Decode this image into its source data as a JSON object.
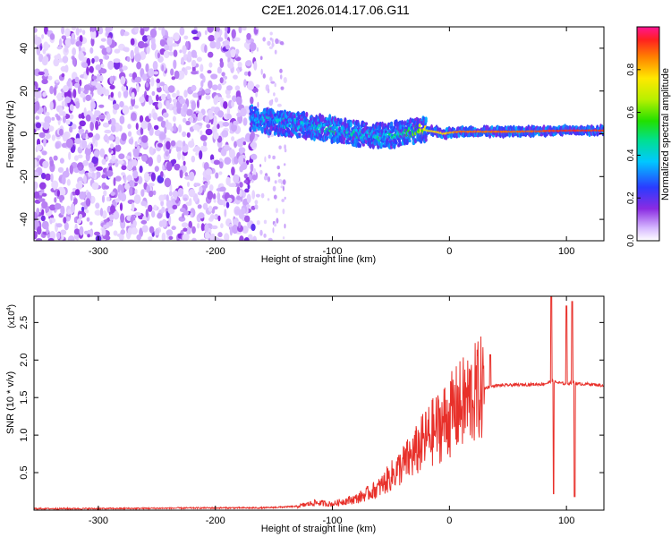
{
  "title": "C2E1.2026.014.17.06.G11",
  "colors": {
    "line": "#e8302a",
    "axis": "#000000"
  },
  "chart_data": [
    {
      "type": "heatmap",
      "name": "spectrogram",
      "xlabel": "Height of straight line (km)",
      "ylabel": "Frequency (Hz)",
      "xlim": [
        -355,
        132
      ],
      "ylim": [
        -50,
        50
      ],
      "x_ticks": [
        {
          "value": -300,
          "label": "-300"
        },
        {
          "value": -200,
          "label": "-200"
        },
        {
          "value": -100,
          "label": "-100"
        },
        {
          "value": 0,
          "label": "0"
        },
        {
          "value": 100,
          "label": "100"
        }
      ],
      "y_ticks": [
        {
          "value": -40,
          "label": "-40"
        },
        {
          "value": -20,
          "label": "-20"
        },
        {
          "value": 0,
          "label": "0"
        },
        {
          "value": 20,
          "label": "20"
        },
        {
          "value": 40,
          "label": "40"
        }
      ],
      "colorbar": {
        "label": "Normalized spectral amplitude",
        "range": [
          0,
          1
        ],
        "ticks": [
          {
            "value": 0.0,
            "label": "0.0"
          },
          {
            "value": 0.2,
            "label": "0.2"
          },
          {
            "value": 0.4,
            "label": "0.4"
          },
          {
            "value": 0.6,
            "label": "0.6"
          },
          {
            "value": 0.8,
            "label": "0.8"
          }
        ]
      },
      "signal_track": {
        "x": [
          -170,
          -140,
          -110,
          -80,
          -60,
          -40,
          -25,
          -12,
          -5,
          0,
          10,
          25,
          60,
          100,
          132
        ],
        "freq": [
          7,
          5,
          3,
          0,
          -1,
          0,
          2,
          1,
          0,
          0.5,
          1,
          1,
          1,
          1.5,
          1.5
        ],
        "amplitude": [
          0.4,
          0.45,
          0.5,
          0.5,
          0.5,
          0.55,
          0.75,
          0.8,
          0.8,
          0.85,
          0.9,
          0.9,
          0.9,
          0.95,
          0.95
        ]
      },
      "noise_region": {
        "x_from": -355,
        "x_to": -165,
        "freq_from": -50,
        "freq_to": 50
      }
    },
    {
      "type": "line",
      "name": "snr",
      "xlabel": "Height of straight line (km)",
      "ylabel": "SNR (10 * v/v)",
      "y_scale_label": "(x10",
      "y_scale_exp": "4",
      "y_scale_suffix": ")",
      "xlim": [
        -355,
        132
      ],
      "ylim": [
        0,
        2.85
      ],
      "x_ticks": [
        {
          "value": -300,
          "label": "-300"
        },
        {
          "value": -200,
          "label": "-200"
        },
        {
          "value": -100,
          "label": "-100"
        },
        {
          "value": 0,
          "label": "0"
        },
        {
          "value": 100,
          "label": "100"
        }
      ],
      "y_ticks": [
        {
          "value": 0.5,
          "label": "0.5"
        },
        {
          "value": 1.0,
          "label": "1.0"
        },
        {
          "value": 1.5,
          "label": "1.5"
        },
        {
          "value": 2.0,
          "label": "2.0"
        },
        {
          "value": 2.5,
          "label": "2.5"
        }
      ],
      "series": [
        {
          "name": "SNR",
          "x": [
            -355,
            -300,
            -200,
            -160,
            -130,
            -115,
            -100,
            -90,
            -80,
            -70,
            -60,
            -50,
            -40,
            -30,
            -20,
            -10,
            0,
            10,
            20,
            28,
            40,
            60,
            80,
            85,
            88,
            92,
            100,
            104,
            107,
            110,
            120,
            132
          ],
          "y": [
            0.02,
            0.02,
            0.03,
            0.03,
            0.05,
            0.1,
            0.08,
            0.12,
            0.15,
            0.22,
            0.3,
            0.45,
            0.6,
            0.75,
            0.95,
            1.1,
            1.25,
            1.4,
            1.52,
            1.62,
            1.66,
            1.67,
            1.68,
            1.7,
            1.72,
            1.7,
            1.68,
            1.7,
            1.7,
            1.68,
            1.68,
            1.66
          ]
        }
      ],
      "spikes": [
        {
          "x": 35,
          "y": 2.07
        },
        {
          "x": 87,
          "y": 2.85
        },
        {
          "x": 89,
          "y": 0.22
        },
        {
          "x": 100,
          "y": 2.72
        },
        {
          "x": 105,
          "y": 2.78
        },
        {
          "x": 107,
          "y": 0.18
        }
      ]
    }
  ]
}
